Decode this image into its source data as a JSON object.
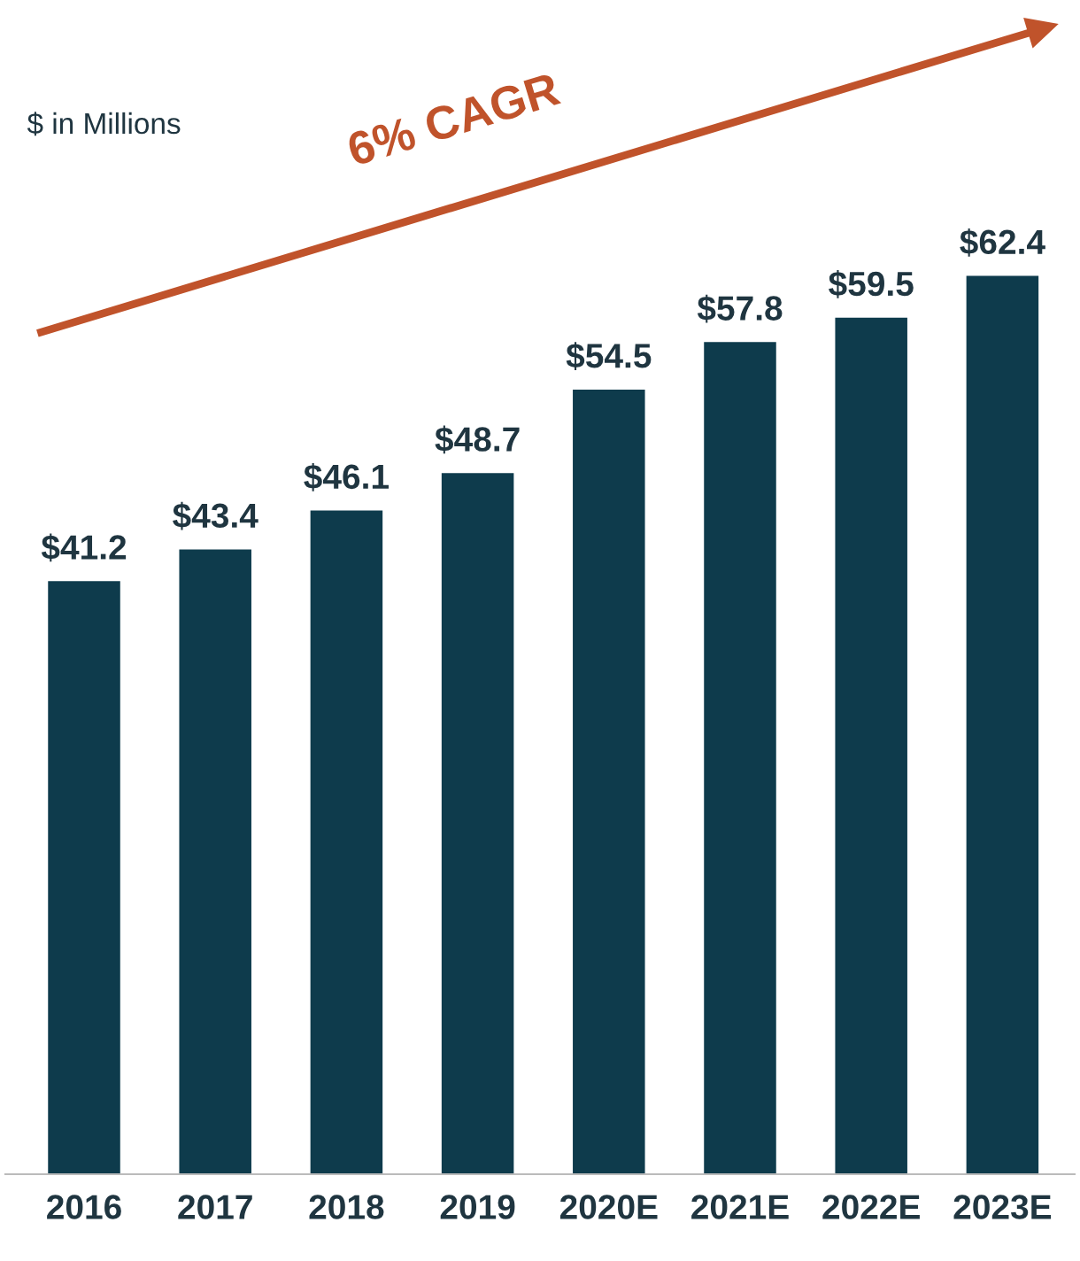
{
  "chart_data": {
    "type": "bar",
    "categories": [
      "2016",
      "2017",
      "2018",
      "2019",
      "2020E",
      "2021E",
      "2022E",
      "2023E"
    ],
    "values": [
      41.2,
      43.4,
      46.1,
      48.7,
      54.5,
      57.8,
      59.5,
      62.4
    ],
    "value_labels": [
      "$41.2",
      "$43.4",
      "$46.1",
      "$48.7",
      "$54.5",
      "$57.8",
      "$59.5",
      "$62.4"
    ],
    "color": "#0e3b4c",
    "tick_labels": "x",
    "grid": false,
    "annotations": [
      "$ in Millions",
      "6% CAGR"
    ]
  }
}
